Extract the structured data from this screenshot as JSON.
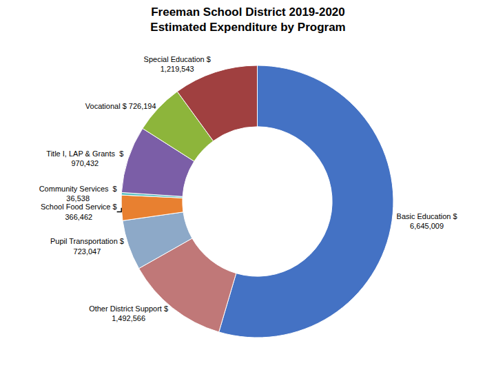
{
  "chart_data": {
    "type": "pie",
    "title": "Freeman School District 2019-2020\nEstimated Expenditure by Program",
    "categories": [
      "Basic Education $\n6,645,009",
      "Other District Support $\n1,492,566",
      "Pupil Transportation $\n723,047",
      "School Food Service $\n366,462",
      "Community Services  $\n36,538",
      "Title I, LAP & Grants  $\n970,432",
      "Vocational $ 726,194",
      "Special Education $\n1,219,543"
    ],
    "values": [
      6645009,
      1492566,
      723047,
      366462,
      36538,
      970432,
      726194,
      1219543
    ],
    "colors": [
      "#4472C4",
      "#C07878",
      "#8DA9C8",
      "#E88030",
      "#5BBFBF",
      "#7B5EA7",
      "#8DB53B",
      "#A04040"
    ]
  }
}
